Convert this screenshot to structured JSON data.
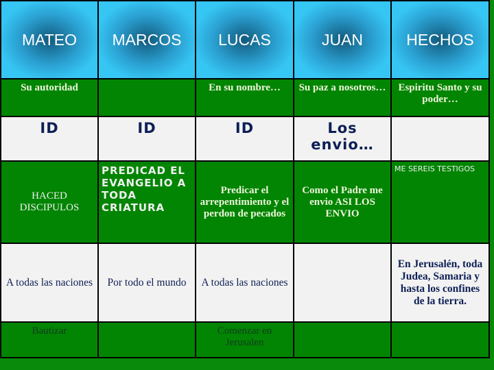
{
  "headers": [
    "MATEO",
    "MARCOS",
    "LUCAS",
    "JUAN",
    "HECHOS"
  ],
  "row1": [
    "Su autoridad",
    "",
    "En su nombre…",
    "Su paz a nosotros…",
    "Espiritu Santo y su poder…"
  ],
  "row2": [
    "ID",
    "ID",
    "ID",
    "Los envio…",
    ""
  ],
  "row3": [
    "HACED DISCIPULOS",
    "PREDICAD EL EVANGELIO A TODA CRIATURA",
    "Predicar el arrepentimiento y el perdon de pecados",
    "Como el Padre me envio ASI LOS ENVIO",
    "ME SEREIS TESTIGOS"
  ],
  "row4": [
    "A todas las naciones",
    "Por todo el mundo",
    "A todas las naciones",
    "",
    "En Jerusalén, toda Judea, Samaria y hasta los confines de la tierra."
  ],
  "row5": [
    "Bautizar",
    "",
    "Comenzar en Jerusalen",
    "",
    ""
  ],
  "colors": {
    "header": "#36c6f4",
    "green": "#028502",
    "light": "#f2f2f2",
    "navy": "#0d1f55"
  }
}
